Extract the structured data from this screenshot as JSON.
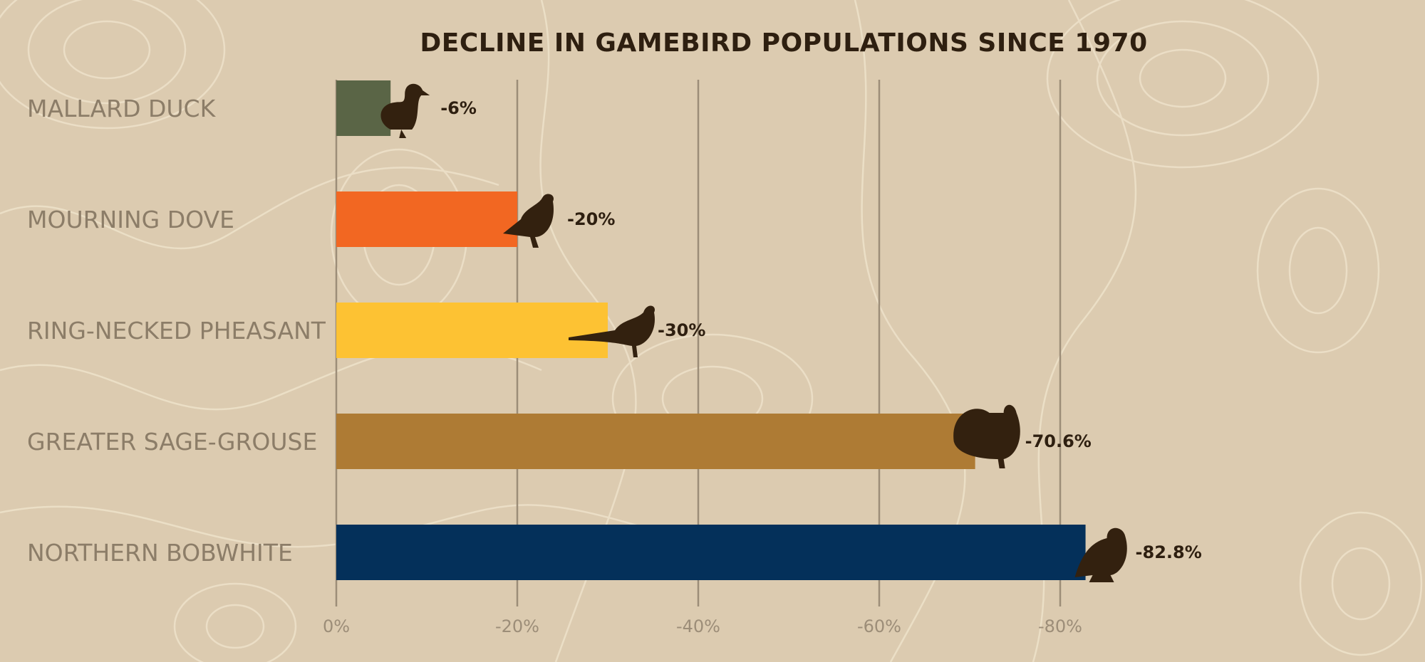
{
  "chart_data": {
    "type": "bar",
    "orientation": "horizontal",
    "title": "DECLINE IN GAMEBIRD POPULATIONS SINCE 1970",
    "categories": [
      "MALLARD DUCK",
      "MOURNING DOVE",
      "RING-NECKED PHEASANT",
      "GREATER SAGE-GROUSE",
      "NORTHERN BOBWHITE"
    ],
    "values": [
      -6,
      -20,
      -30,
      -70.6,
      -82.8
    ],
    "value_labels": [
      "-6%",
      "-20%",
      "-30%",
      "-70.6%",
      "-82.8%"
    ],
    "colors": [
      "#5a6546",
      "#f26722",
      "#fdc233",
      "#ae7b34",
      "#04305a"
    ],
    "icons": [
      "duck-icon",
      "dove-icon",
      "pheasant-icon",
      "sage-grouse-icon",
      "bobwhite-icon"
    ],
    "xticks": [
      0,
      -20,
      -40,
      -60,
      -80
    ],
    "xtick_labels": [
      "0%",
      "-20%",
      "-40%",
      "-60%",
      "-80%"
    ],
    "xlim": [
      0,
      -85
    ],
    "grid": true,
    "xlabel": "",
    "ylabel": ""
  }
}
